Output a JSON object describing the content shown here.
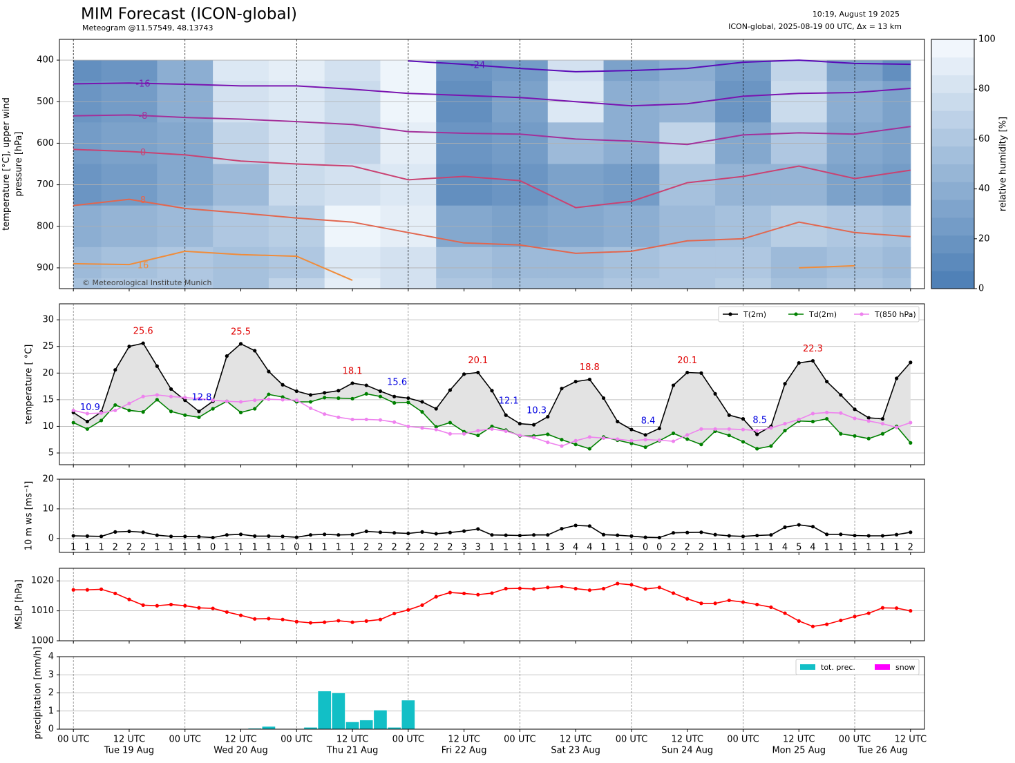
{
  "header": {
    "title": "MIM Forecast (ICON-global)",
    "subtitle": "Meteogram @11.57549, 48.13743",
    "timestamp": "10:19, August 19 2025",
    "run": "ICON-global, 2025-08-19 00 UTC, Δx = 13 km",
    "copyright": "© Meteorological Institute Munich"
  },
  "time": {
    "x": [
      0,
      3,
      6,
      9,
      12,
      15,
      18,
      21,
      24,
      27,
      30,
      33,
      36,
      39,
      42,
      45,
      48,
      51,
      54,
      57,
      60,
      63,
      66,
      69,
      72,
      75,
      78,
      81,
      84,
      87,
      90,
      93,
      96,
      99,
      102,
      105,
      108,
      111,
      114,
      117,
      120,
      123,
      126,
      129,
      132,
      135,
      138,
      141,
      144,
      147,
      150,
      153,
      156,
      159,
      162,
      165,
      168,
      171,
      174,
      177,
      180
    ],
    "xlim": [
      -3,
      183
    ],
    "xticks": [
      {
        "value": 0,
        "label": "00 UTC"
      },
      {
        "value": 12,
        "label": "12 UTC"
      },
      {
        "value": 24,
        "label": "00 UTC"
      },
      {
        "value": 36,
        "label": "12 UTC"
      },
      {
        "value": 48,
        "label": "00 UTC"
      },
      {
        "value": 60,
        "label": "12 UTC"
      },
      {
        "value": 72,
        "label": "00 UTC"
      },
      {
        "value": 84,
        "label": "12 UTC"
      },
      {
        "value": 96,
        "label": "00 UTC"
      },
      {
        "value": 108,
        "label": "12 UTC"
      },
      {
        "value": 120,
        "label": "00 UTC"
      },
      {
        "value": 132,
        "label": "12 UTC"
      },
      {
        "value": 144,
        "label": "00 UTC"
      },
      {
        "value": 156,
        "label": "12 UTC"
      },
      {
        "value": 168,
        "label": "00 UTC"
      },
      {
        "value": 180,
        "label": "12 UTC"
      }
    ],
    "xdates": [
      {
        "value": 12,
        "label": "Tue 19 Aug"
      },
      {
        "value": 36,
        "label": "Wed 20 Aug"
      },
      {
        "value": 60,
        "label": "Thu 21 Aug"
      },
      {
        "value": 84,
        "label": "Fri 22 Aug"
      },
      {
        "value": 108,
        "label": "Sat 23 Aug"
      },
      {
        "value": 132,
        "label": "Sun 24 Aug"
      },
      {
        "value": 156,
        "label": "Mon 25 Aug"
      },
      {
        "value": 174,
        "label": "Tue 26 Aug"
      }
    ],
    "day_lines": [
      0,
      24,
      48,
      72,
      96,
      120,
      144,
      168
    ]
  },
  "chart_data": [
    {
      "type": "contour",
      "ylabel": [
        "temperature [°C], upper wind",
        "pressure [hPa]"
      ],
      "ylim": [
        950,
        350
      ],
      "yticks": [
        400,
        500,
        600,
        700,
        800,
        900
      ],
      "grid": true,
      "x": [
        0,
        12,
        24,
        36,
        48,
        60,
        72,
        84,
        96,
        108,
        120,
        132,
        144,
        156,
        168,
        180
      ],
      "levels": [
        400,
        500,
        600,
        700,
        800,
        900,
        950
      ],
      "humidity": {
        "label": "relative humidity [%]",
        "clim": [
          0,
          100
        ],
        "ticks": [
          0,
          20,
          40,
          60,
          80,
          100
        ],
        "colors": [
          "#4a7db4",
          "#9dbad9",
          "#f7fbff"
        ],
        "values": [
          [
            15,
            20,
            40,
            85,
            90,
            80,
            95,
            20,
            25,
            80,
            30,
            40,
            25,
            70,
            30,
            15
          ],
          [
            20,
            25,
            40,
            80,
            85,
            75,
            95,
            15,
            30,
            85,
            40,
            45,
            20,
            75,
            40,
            30
          ],
          [
            25,
            30,
            35,
            70,
            80,
            70,
            90,
            20,
            25,
            50,
            40,
            70,
            35,
            60,
            35,
            30
          ],
          [
            20,
            25,
            35,
            50,
            75,
            80,
            85,
            15,
            20,
            30,
            25,
            55,
            45,
            45,
            30,
            25
          ],
          [
            40,
            45,
            50,
            60,
            65,
            95,
            90,
            35,
            30,
            35,
            40,
            50,
            55,
            65,
            60,
            55
          ],
          [
            50,
            55,
            60,
            55,
            60,
            85,
            80,
            55,
            50,
            50,
            55,
            60,
            60,
            50,
            55,
            50
          ],
          [
            55,
            60,
            60,
            55,
            70,
            90,
            80,
            60,
            55,
            55,
            60,
            60,
            65,
            55,
            60,
            55
          ]
        ]
      },
      "isotherms": [
        {
          "name": "-24",
          "color": "#5a0cb8",
          "values": [
            null,
            null,
            null,
            null,
            null,
            null,
            402,
            410,
            420,
            428,
            425,
            420,
            405,
            400,
            408,
            410
          ]
        },
        {
          "name": "-16",
          "color": "#7a14b0",
          "values": [
            457,
            455,
            458,
            462,
            462,
            470,
            480,
            485,
            490,
            500,
            510,
            505,
            487,
            480,
            478,
            468
          ]
        },
        {
          "name": "-8",
          "color": "#a3309a",
          "values": [
            534,
            532,
            538,
            542,
            548,
            555,
            572,
            576,
            578,
            590,
            595,
            603,
            580,
            575,
            578,
            560
          ]
        },
        {
          "name": "0",
          "color": "#c94272",
          "values": [
            615,
            620,
            628,
            643,
            650,
            655,
            688,
            680,
            690,
            755,
            740,
            695,
            680,
            655,
            685,
            665
          ]
        },
        {
          "name": "8",
          "color": "#e2664e",
          "values": [
            750,
            735,
            757,
            768,
            780,
            790,
            815,
            840,
            845,
            865,
            860,
            835,
            830,
            790,
            815,
            825
          ]
        },
        {
          "name": "16",
          "color": "#f08c3a",
          "values": [
            890,
            892,
            860,
            868,
            872,
            930,
            null,
            null,
            null,
            null,
            null,
            null,
            null,
            900,
            895,
            null
          ]
        }
      ]
    },
    {
      "type": "line",
      "ylabel": "temperature [ °C]",
      "ylim": [
        2.8,
        33
      ],
      "yticks": [
        5,
        10,
        15,
        20,
        25,
        30
      ],
      "grid": true,
      "legend": "upper right",
      "fill_color": "#e3e3e3",
      "max_label_color": "#e00000",
      "min_label_color": "#0000e0",
      "series": [
        {
          "name": "T(2m)",
          "color": "#000000",
          "values": [
            12.6,
            10.9,
            12.7,
            20.6,
            25.0,
            25.6,
            21.3,
            17.0,
            14.9,
            12.8,
            14.7,
            23.2,
            25.5,
            24.2,
            20.3,
            17.8,
            16.6,
            15.9,
            16.3,
            16.7,
            18.1,
            17.7,
            16.6,
            15.6,
            15.3,
            14.6,
            13.3,
            16.8,
            19.8,
            20.1,
            16.7,
            12.1,
            10.5,
            10.3,
            11.8,
            17.1,
            18.4,
            18.8,
            15.3,
            10.9,
            9.4,
            8.4,
            9.6,
            17.7,
            20.1,
            20.0,
            16.1,
            12.1,
            11.4,
            8.5,
            10.0,
            18.0,
            21.9,
            22.3,
            18.4,
            15.9,
            13.2,
            11.6,
            11.4,
            19.0,
            22.0
          ],
          "value_labels": [
            null,
            "10.9",
            null,
            null,
            null,
            "25.6",
            null,
            null,
            null,
            "12.8",
            null,
            null,
            "25.5",
            null,
            null,
            null,
            null,
            null,
            null,
            null,
            "18.1",
            null,
            null,
            "15.6",
            null,
            null,
            null,
            null,
            null,
            "20.1",
            null,
            "12.1",
            null,
            "10.3",
            null,
            null,
            null,
            "18.8",
            null,
            null,
            null,
            "8.4",
            null,
            null,
            "20.1",
            null,
            null,
            null,
            null,
            "8.5",
            null,
            null,
            null,
            "22.3",
            null,
            null,
            null,
            null,
            null,
            null,
            null
          ]
        },
        {
          "name": "Td(2m)",
          "color": "#008000",
          "values": [
            10.7,
            9.5,
            11.1,
            14.0,
            13.0,
            12.7,
            15.0,
            12.8,
            12.1,
            11.7,
            13.3,
            14.7,
            12.6,
            13.3,
            16.0,
            15.5,
            14.6,
            14.6,
            15.4,
            15.3,
            15.2,
            16.1,
            15.6,
            14.4,
            14.5,
            12.7,
            9.9,
            10.7,
            9.0,
            8.3,
            10.0,
            9.3,
            8.2,
            8.2,
            8.5,
            7.5,
            6.6,
            5.8,
            8.0,
            7.4,
            6.8,
            6.1,
            7.3,
            8.7,
            7.6,
            6.6,
            9.1,
            8.3,
            7.1,
            5.8,
            6.3,
            9.2,
            11.0,
            10.9,
            11.4,
            8.6,
            8.2,
            7.7,
            8.6,
            10.0,
            6.9
          ]
        },
        {
          "name": "T(850 hPa)",
          "color": "#ee82ee",
          "values": [
            13.0,
            12.4,
            12.5,
            13.0,
            14.3,
            15.6,
            15.9,
            15.6,
            15.4,
            15.2,
            14.9,
            14.7,
            14.6,
            14.9,
            15.1,
            15.0,
            14.9,
            13.4,
            12.3,
            11.7,
            11.3,
            11.3,
            11.2,
            10.8,
            10.0,
            9.7,
            9.4,
            8.6,
            8.6,
            9.2,
            9.5,
            9.1,
            8.3,
            7.9,
            7.0,
            6.3,
            7.3,
            8.0,
            7.8,
            7.6,
            7.3,
            7.5,
            7.4,
            7.2,
            8.4,
            9.5,
            9.5,
            9.5,
            9.4,
            9.2,
            9.7,
            10.5,
            11.3,
            12.4,
            12.6,
            12.5,
            11.5,
            11.0,
            10.5,
            9.8,
            10.7
          ]
        }
      ]
    },
    {
      "type": "line",
      "ylabel": "10 m ws [ms⁻¹]",
      "ylim": [
        -4.7,
        20
      ],
      "yticks": [
        0,
        10,
        20
      ],
      "grid": true,
      "series": [
        {
          "name": "10 m ws",
          "color": "#000000",
          "values": [
            0.9,
            0.8,
            0.7,
            2.2,
            2.4,
            2.1,
            1.1,
            0.7,
            0.7,
            0.6,
            0.3,
            1.2,
            1.4,
            0.8,
            0.8,
            0.7,
            0.4,
            1.2,
            1.4,
            1.2,
            1.3,
            2.4,
            2.1,
            1.9,
            1.7,
            2.2,
            1.6,
            2.0,
            2.5,
            3.2,
            1.2,
            1.1,
            1.0,
            1.2,
            1.2,
            3.3,
            4.4,
            4.2,
            1.3,
            1.1,
            0.8,
            0.4,
            0.3,
            1.9,
            2.0,
            2.1,
            1.3,
            0.9,
            0.7,
            1.0,
            1.2,
            3.8,
            4.6,
            4.0,
            1.4,
            1.4,
            1.0,
            0.9,
            0.9,
            1.3,
            2.1
          ],
          "value_labels": [
            "1",
            "1",
            "1",
            "2",
            "2",
            "2",
            "1",
            "1",
            "1",
            "1",
            "0",
            "1",
            "1",
            "1",
            "1",
            "1",
            "0",
            "1",
            "1",
            "1",
            "1",
            "2",
            "2",
            "2",
            "2",
            "2",
            "2",
            "2",
            "3",
            "3",
            "1",
            "1",
            "1",
            "1",
            "1",
            "3",
            "4",
            "4",
            "1",
            "1",
            "1",
            "0",
            "0",
            "2",
            "2",
            "2",
            "1",
            "1",
            "1",
            "1",
            "1",
            "4",
            "5",
            "4",
            "1",
            "1",
            "1",
            "1",
            "1",
            "1",
            "2"
          ]
        }
      ]
    },
    {
      "type": "line",
      "ylabel": "MSLP [hPa]",
      "ylim": [
        1000,
        1024.2
      ],
      "yticks": [
        1000,
        1010,
        1020
      ],
      "grid": true,
      "series": [
        {
          "name": "MSLP",
          "color": "#ff0000",
          "values": [
            1017.0,
            1017.0,
            1017.2,
            1015.8,
            1013.8,
            1011.9,
            1011.7,
            1012.1,
            1011.7,
            1011.0,
            1010.8,
            1009.6,
            1008.5,
            1007.3,
            1007.4,
            1007.1,
            1006.4,
            1006.0,
            1006.2,
            1006.7,
            1006.2,
            1006.6,
            1007.1,
            1009.1,
            1010.3,
            1011.9,
            1014.7,
            1016.1,
            1015.8,
            1015.4,
            1015.9,
            1017.4,
            1017.5,
            1017.3,
            1017.8,
            1018.1,
            1017.4,
            1016.9,
            1017.4,
            1019.1,
            1018.7,
            1017.3,
            1017.8,
            1015.9,
            1014.0,
            1012.5,
            1012.5,
            1013.5,
            1012.9,
            1012.1,
            1011.2,
            1009.2,
            1006.6,
            1004.8,
            1005.5,
            1006.8,
            1008.1,
            1009.2,
            1011.0,
            1010.9,
            1010.0
          ]
        }
      ]
    },
    {
      "type": "bar",
      "ylabel": "precipitation [mm/h]",
      "ylim": [
        0,
        4
      ],
      "yticks": [
        0,
        1,
        2,
        3,
        4
      ],
      "grid": true,
      "legend": "upper right",
      "series": [
        {
          "name": "tot. prec.",
          "color": "#12bfc6",
          "values": [
            0,
            0,
            0,
            0,
            0,
            0,
            0,
            0,
            0,
            0,
            0,
            0,
            0,
            0.05,
            0.15,
            0,
            0,
            0.1,
            2.1,
            2.0,
            0.4,
            0.5,
            1.05,
            0.1,
            1.6,
            0.03,
            0,
            0,
            0,
            0,
            0,
            0,
            0,
            0,
            0.02,
            0,
            0,
            0,
            0,
            0,
            0,
            0,
            0,
            0,
            0,
            0,
            0,
            0,
            0,
            0,
            0,
            0,
            0,
            0,
            0,
            0,
            0,
            0,
            0,
            0,
            0
          ]
        },
        {
          "name": "snow",
          "color": "#ff00ff",
          "values": [
            0,
            0,
            0,
            0,
            0,
            0,
            0,
            0,
            0,
            0,
            0,
            0,
            0,
            0,
            0,
            0,
            0,
            0,
            0,
            0,
            0,
            0,
            0,
            0,
            0,
            0,
            0,
            0,
            0,
            0,
            0,
            0,
            0,
            0,
            0,
            0,
            0,
            0,
            0,
            0,
            0,
            0,
            0,
            0,
            0,
            0,
            0,
            0,
            0,
            0,
            0,
            0,
            0,
            0,
            0,
            0,
            0,
            0,
            0,
            0,
            0
          ]
        }
      ]
    }
  ]
}
